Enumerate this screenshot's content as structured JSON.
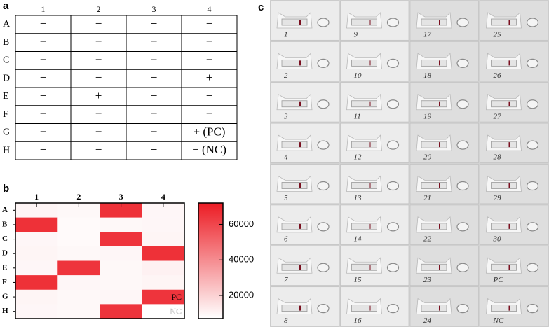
{
  "panel_labels": [
    "a",
    "b",
    "c"
  ],
  "table": {
    "columns": [
      "1",
      "2",
      "3",
      "4"
    ],
    "rows": [
      {
        "label": "A",
        "cells": [
          "−",
          "−",
          "+",
          "−"
        ]
      },
      {
        "label": "B",
        "cells": [
          "+",
          "−",
          "−",
          "−"
        ]
      },
      {
        "label": "C",
        "cells": [
          "−",
          "−",
          "+",
          "−"
        ]
      },
      {
        "label": "D",
        "cells": [
          "−",
          "−",
          "−",
          "+"
        ]
      },
      {
        "label": "E",
        "cells": [
          "−",
          "+",
          "−",
          "−"
        ]
      },
      {
        "label": "F",
        "cells": [
          "+",
          "−",
          "−",
          "−"
        ]
      },
      {
        "label": "G",
        "cells": [
          "−",
          "−",
          "−",
          "+ (PC)"
        ]
      },
      {
        "label": "H",
        "cells": [
          "−",
          "−",
          "+",
          "− (NC)"
        ]
      }
    ]
  },
  "chart_data": {
    "type": "heatmap",
    "columns": [
      "1",
      "2",
      "3",
      "4"
    ],
    "rows": [
      "A",
      "B",
      "C",
      "D",
      "E",
      "F",
      "G",
      "H"
    ],
    "values": [
      [
        10000,
        9000,
        66000,
        9500
      ],
      [
        66000,
        8500,
        9000,
        9500
      ],
      [
        9500,
        8500,
        65000,
        10000
      ],
      [
        10000,
        9000,
        9500,
        66000
      ],
      [
        9500,
        65000,
        9000,
        11000
      ],
      [
        66000,
        9500,
        9000,
        10000
      ],
      [
        10000,
        9000,
        9500,
        65000
      ],
      [
        9500,
        9000,
        65000,
        7000
      ]
    ],
    "zlim": [
      7000,
      72000
    ],
    "zticks": [
      20000,
      40000,
      60000
    ],
    "colormap": [
      "#ffffff",
      "#ec1c24"
    ],
    "annotations": [
      {
        "text": "PC",
        "row": "G",
        "column": "4"
      },
      {
        "text": "NC",
        "row": "H",
        "column": "4"
      }
    ]
  },
  "strips": {
    "labels": [
      "1",
      "2",
      "3",
      "4",
      "5",
      "6",
      "7",
      "8",
      "9",
      "10",
      "11",
      "12",
      "13",
      "14",
      "15",
      "16",
      "17",
      "18",
      "19",
      "20",
      "21",
      "22",
      "23",
      "24",
      "25",
      "26",
      "27",
      "28",
      "29",
      "30",
      "PC",
      "NC"
    ]
  }
}
